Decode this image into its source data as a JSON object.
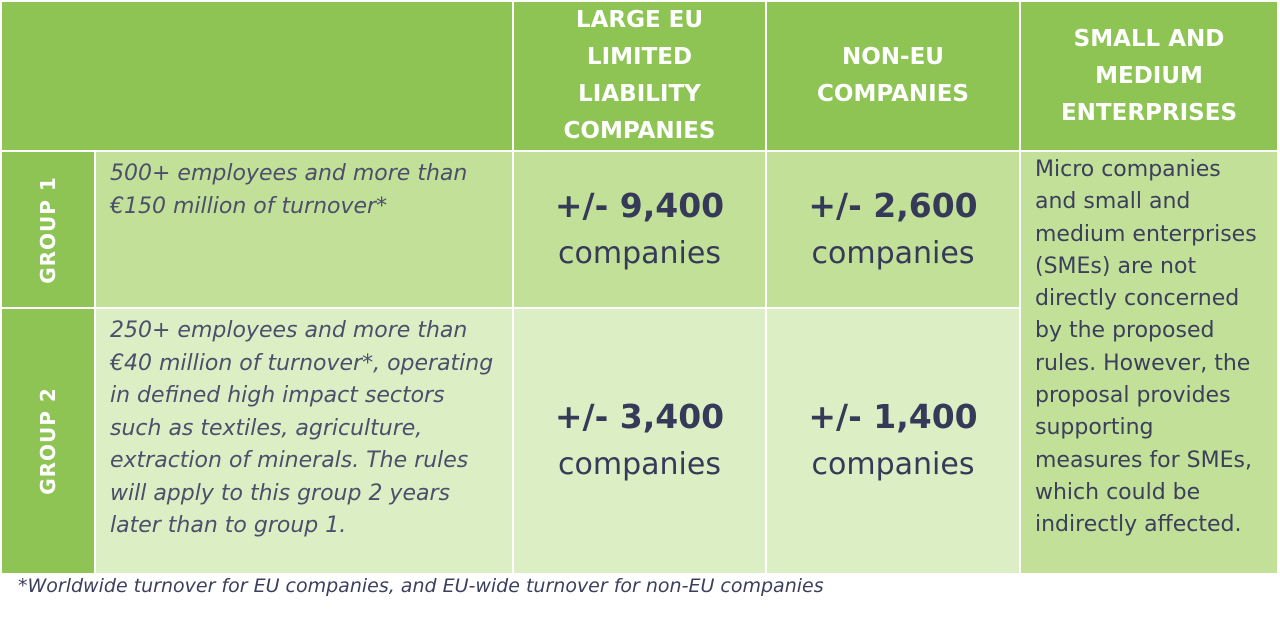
{
  "header": {
    "col1": "LARGE EU LIMITED LIABILITY COMPANIES",
    "col2": "NON-EU COMPANIES",
    "col3": "SMALL AND MEDIUM ENTERPRISES"
  },
  "group1": {
    "label": "GROUP 1",
    "description": "500+ employees and more than €150 million of turnover*",
    "eu_value": "+/- 9,400",
    "eu_unit": "companies",
    "noneu_value": "+/- 2,600",
    "noneu_unit": "companies"
  },
  "group2": {
    "label": "GROUP 2",
    "description": "250+ employees and more than €40 million of turnover*, operating in defined high impact sectors such as textiles, agriculture, extraction of minerals. The rules will apply to this group 2 years later than to group 1.",
    "eu_value": "+/- 3,400",
    "eu_unit": "companies",
    "noneu_value": "+/- 1,400",
    "noneu_unit": "companies"
  },
  "sme_text": "Micro companies and small and medium enterprises (SMEs) are not directly concerned by the proposed rules. However, the proposal provides supporting measures for SMEs, which could be indirectly affected.",
  "footnote": "*Worldwide turnover for EU companies, and EU-wide turnover for non-EU companies",
  "colors": {
    "header_green": "#8dc454",
    "group1_fill": "#c3e098",
    "group2_fill": "#dcefc4",
    "text_navy": "#353a58"
  }
}
